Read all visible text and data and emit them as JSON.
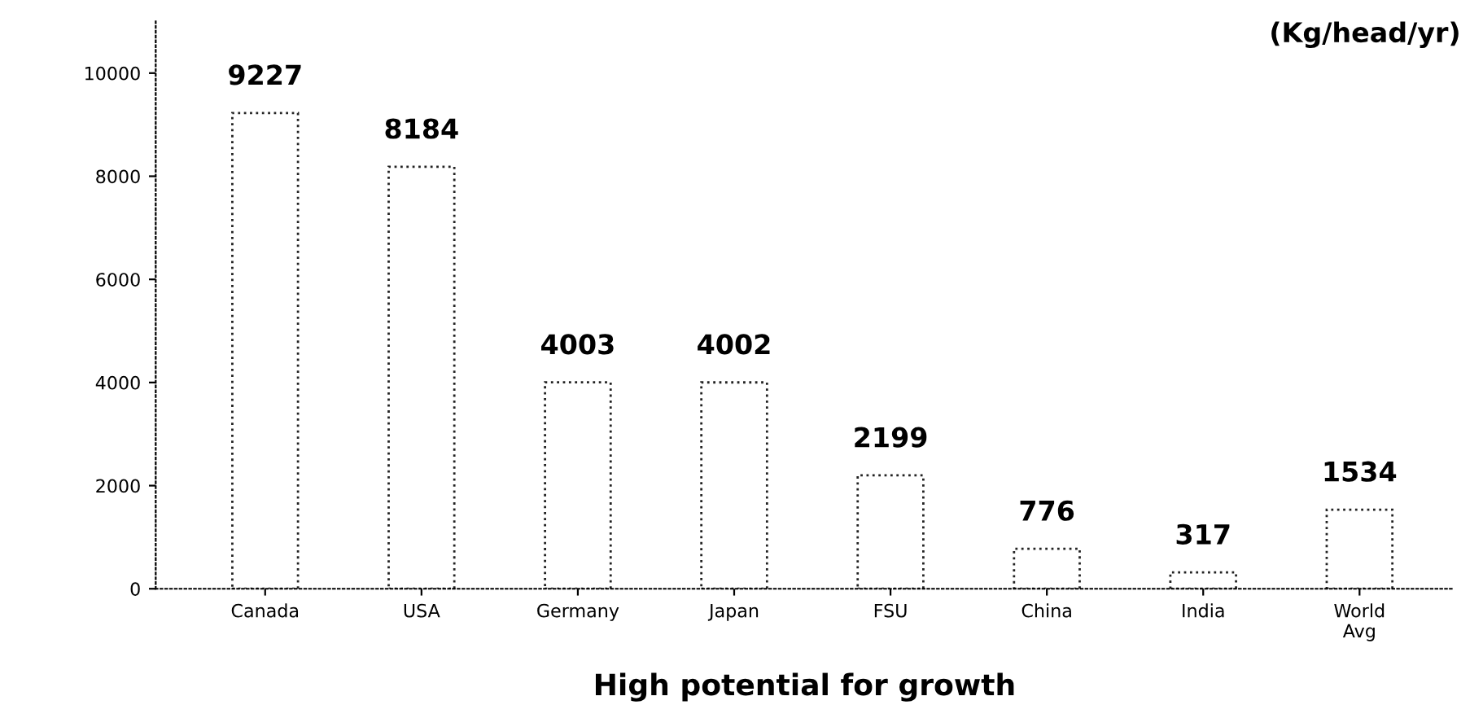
{
  "chart_data": {
    "type": "bar",
    "title": "(Kg/head/yr)",
    "xlabel": "High potential for growth",
    "categories": [
      "Canada",
      "USA",
      "Germany",
      "Japan",
      "FSU",
      "China",
      "India",
      "World\nAvg"
    ],
    "values": [
      9227,
      8184,
      4003,
      4002,
      2199,
      776,
      317,
      1534
    ],
    "color": "#ffffff",
    "data_labels": true,
    "line_style": "dotted",
    "ylim": [
      0,
      11000
    ],
    "yticks": [
      0,
      2000,
      4000,
      6000,
      8000,
      10000
    ],
    "grid": false,
    "legend": false
  }
}
